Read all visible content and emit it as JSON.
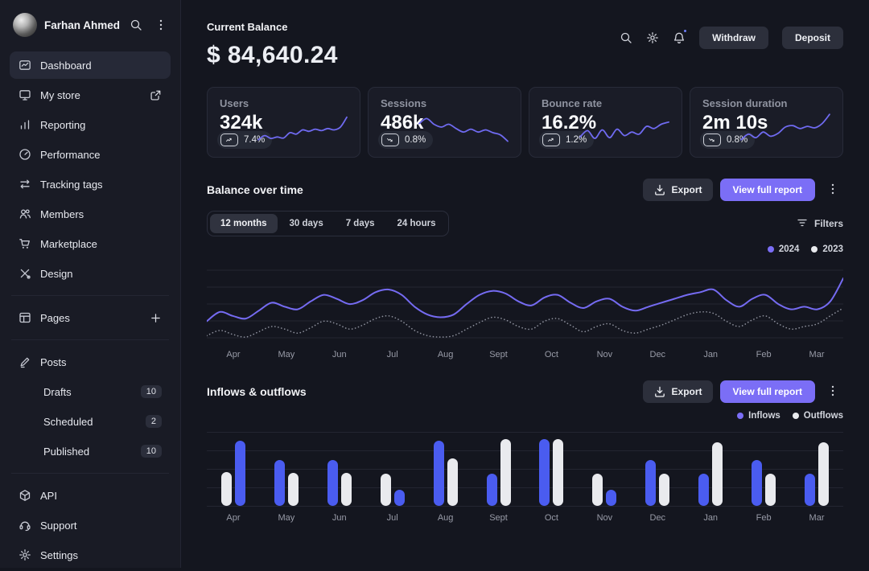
{
  "theme": {
    "background": "#14161f",
    "sidebar_background": "#191b25",
    "card_background": "#1a1c27",
    "accent_purple": "#7b6ef6",
    "bar_blue": "#4a5cf0",
    "bar_white": "#e9eaee",
    "muted_text": "#8f93a0"
  },
  "sidebar": {
    "user": {
      "name": "Farhan Ahmed"
    },
    "items": [
      {
        "label": "Dashboard",
        "icon": "dashboard-icon",
        "active": true
      },
      {
        "label": "My store",
        "icon": "monitor-icon",
        "trailing_icon": "external-link-icon"
      },
      {
        "label": "Reporting",
        "icon": "bar-chart-icon"
      },
      {
        "label": "Performance",
        "icon": "speedometer-icon"
      },
      {
        "label": "Tracking tags",
        "icon": "swap-arrows-icon"
      },
      {
        "label": "Members",
        "icon": "users-icon"
      },
      {
        "label": "Marketplace",
        "icon": "cart-icon"
      },
      {
        "label": "Design",
        "icon": "design-tools-icon"
      },
      {
        "divider": true
      },
      {
        "label": "Pages",
        "icon": "pages-icon",
        "trailing_icon": "plus-icon"
      },
      {
        "divider": true
      },
      {
        "label": "Posts",
        "icon": "pen-icon"
      },
      {
        "label": "Drafts",
        "sub": true,
        "badge": "10"
      },
      {
        "label": "Scheduled",
        "sub": true,
        "badge": "2"
      },
      {
        "label": "Published",
        "sub": true,
        "badge": "10"
      },
      {
        "divider": true
      },
      {
        "label": "API",
        "icon": "cube-icon"
      },
      {
        "label": "Support",
        "icon": "headset-icon"
      },
      {
        "label": "Settings",
        "icon": "gear-icon"
      }
    ]
  },
  "header": {
    "balance_label": "Current Balance",
    "balance_value": "$ 84,640.24",
    "withdraw_label": "Withdraw",
    "deposit_label": "Deposit",
    "bell_has_notification": true
  },
  "stats": [
    {
      "label": "Users",
      "value": "324k",
      "change": "7.4%",
      "trend": "up",
      "spark": [
        14,
        26,
        18,
        22,
        19,
        34,
        30,
        42,
        38,
        44,
        40,
        46,
        42,
        50,
        78
      ]
    },
    {
      "label": "Sessions",
      "value": "486k",
      "change": "0.8%",
      "trend": "down",
      "spark": [
        60,
        74,
        58,
        50,
        58,
        46,
        36,
        44,
        36,
        42,
        34,
        28,
        10
      ]
    },
    {
      "label": "Bounce rate",
      "value": "16.2%",
      "change": "1.2%",
      "trend": "up",
      "spark": [
        22,
        40,
        18,
        42,
        20,
        44,
        26,
        36,
        30,
        52,
        46,
        58,
        64
      ]
    },
    {
      "label": "Session duration",
      "value": "2m 10s",
      "change": "0.8%",
      "trend": "down",
      "spark": [
        14,
        30,
        20,
        36,
        24,
        32,
        50,
        54,
        46,
        52,
        48,
        60,
        86
      ]
    }
  ],
  "balance_section": {
    "title": "Balance over time",
    "export_label": "Export",
    "view_report_label": "View full report",
    "tabs": [
      {
        "label": "12 months",
        "active": true
      },
      {
        "label": "30 days",
        "active": false
      },
      {
        "label": "7 days",
        "active": false
      },
      {
        "label": "24 hours",
        "active": false
      }
    ],
    "filters_label": "Filters",
    "legend": [
      {
        "label": "2024",
        "color": "#7b6ef6"
      },
      {
        "label": "2023",
        "color": "#e9eaee"
      }
    ]
  },
  "inflows_section": {
    "title": "Inflows & outflows",
    "export_label": "Export",
    "view_report_label": "View full report",
    "legend": [
      {
        "label": "Inflows",
        "color": "#7b6ef6"
      },
      {
        "label": "Outflows",
        "color": "#e9eaee"
      }
    ]
  },
  "chart_data": [
    {
      "type": "line",
      "title": "Balance over time",
      "x_labels": [
        "Apr",
        "May",
        "Jun",
        "Jul",
        "Aug",
        "Sept",
        "Oct",
        "Nov",
        "Dec",
        "Jan",
        "Feb",
        "Mar"
      ],
      "ylabel": "",
      "note": "y-axis has no visible tick values; values are relative 0-100 estimates",
      "grid": "horizontal",
      "legend_position": "top-right",
      "series": [
        {
          "name": "2024",
          "style": "solid",
          "color": "#756bf2",
          "values": [
            30,
            44,
            38,
            34,
            46,
            58,
            52,
            48,
            60,
            70,
            64,
            56,
            62,
            74,
            78,
            70,
            52,
            40,
            36,
            40,
            56,
            70,
            76,
            72,
            60,
            54,
            66,
            70,
            58,
            50,
            60,
            64,
            52,
            46,
            52,
            58,
            64,
            70,
            74,
            78,
            62,
            52,
            64,
            70,
            56,
            48,
            52,
            48,
            60,
            95
          ]
        },
        {
          "name": "2023",
          "style": "dotted",
          "color": "#8f929e",
          "values": [
            8,
            16,
            10,
            6,
            14,
            22,
            18,
            12,
            20,
            30,
            26,
            18,
            24,
            34,
            38,
            30,
            16,
            8,
            6,
            8,
            18,
            28,
            36,
            32,
            22,
            18,
            30,
            34,
            24,
            14,
            22,
            26,
            16,
            12,
            18,
            24,
            32,
            40,
            44,
            42,
            30,
            22,
            32,
            38,
            26,
            18,
            22,
            26,
            38,
            50
          ]
        }
      ]
    },
    {
      "type": "bar",
      "title": "Inflows & outflows",
      "categories": [
        "Apr",
        "May",
        "Jun",
        "Jul",
        "Aug",
        "Sept",
        "Oct",
        "Nov",
        "Dec",
        "Jan",
        "Feb",
        "Mar"
      ],
      "ylabel": "",
      "note": "y-axis has no visible tick values; bar heights are relative 0-100 estimates",
      "grid": "horizontal",
      "legend_position": "top-right",
      "series": [
        {
          "name": "Inflows",
          "color": "#4a5cf0",
          "values": [
            88,
            62,
            62,
            22,
            88,
            44,
            90,
            22,
            62,
            44,
            62,
            44
          ]
        },
        {
          "name": "Outflows",
          "color": "#e9eaee",
          "values": [
            46,
            45,
            45,
            44,
            64,
            90,
            90,
            44,
            44,
            86,
            44,
            86
          ]
        }
      ],
      "left_bar_per_month": [
        "Outflows",
        "Inflows",
        "Inflows",
        "Outflows",
        "Inflows",
        "Inflows",
        "Inflows",
        "Outflows",
        "Inflows",
        "Inflows",
        "Inflows",
        "Inflows"
      ]
    }
  ]
}
